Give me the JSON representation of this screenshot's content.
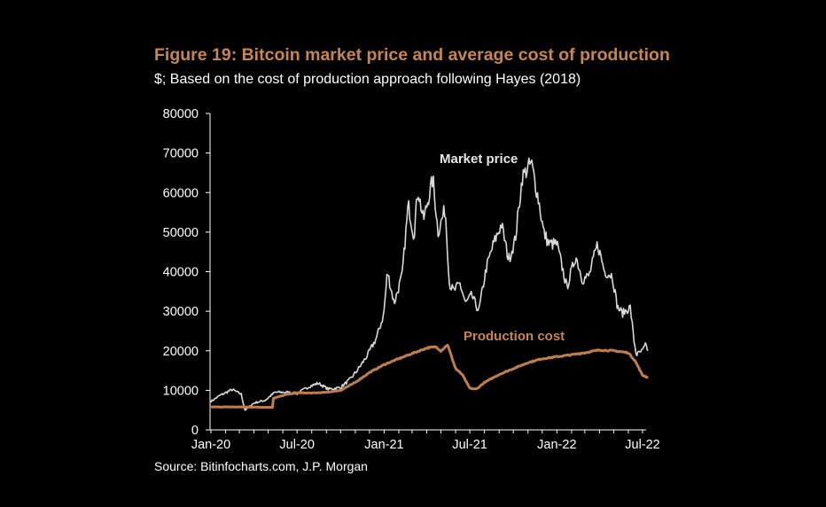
{
  "chart_data": {
    "type": "line",
    "title": "Figure 19: Bitcoin market price and average cost of production",
    "subtitle": "$; Based on the cost of production approach following Hayes (2018)",
    "source": "Source: Bitinfocharts.com, J.P. Morgan",
    "xlabel": "",
    "ylabel": "",
    "x_range": [
      "2020-01-01",
      "2022-07-15"
    ],
    "x_ticks": [
      "Jan-20",
      "Jul-20",
      "Jan-21",
      "Jul-21",
      "Jan-22",
      "Jul-22"
    ],
    "x_tick_dates": [
      "2020-01-01",
      "2020-07-01",
      "2021-01-01",
      "2021-07-01",
      "2022-01-01",
      "2022-07-01"
    ],
    "ylim": [
      0,
      80000
    ],
    "y_ticks": [
      "0",
      "10000",
      "20000",
      "30000",
      "40000",
      "50000",
      "60000",
      "70000",
      "80000"
    ],
    "grid": false,
    "colors": {
      "market": "#d9d9d9",
      "production": "#c07f4a",
      "title": "#c8864f"
    },
    "series": [
      {
        "name": "Market price",
        "x": [
          "2020-01-01",
          "2020-01-20",
          "2020-02-15",
          "2020-03-05",
          "2020-03-13",
          "2020-04-01",
          "2020-04-25",
          "2020-05-15",
          "2020-06-10",
          "2020-07-01",
          "2020-07-27",
          "2020-08-15",
          "2020-09-05",
          "2020-10-01",
          "2020-10-21",
          "2020-11-05",
          "2020-11-25",
          "2020-12-15",
          "2020-12-31",
          "2021-01-08",
          "2021-01-22",
          "2021-02-08",
          "2021-02-21",
          "2021-03-05",
          "2021-03-13",
          "2021-03-25",
          "2021-04-14",
          "2021-04-25",
          "2021-05-10",
          "2021-05-19",
          "2021-05-28",
          "2021-06-10",
          "2021-06-22",
          "2021-07-05",
          "2021-07-20",
          "2021-08-05",
          "2021-08-20",
          "2021-09-06",
          "2021-09-21",
          "2021-10-05",
          "2021-10-20",
          "2021-11-08",
          "2021-11-25",
          "2021-12-04",
          "2021-12-15",
          "2022-01-01",
          "2022-01-22",
          "2022-02-10",
          "2022-02-24",
          "2022-03-10",
          "2022-03-28",
          "2022-04-12",
          "2022-04-28",
          "2022-05-09",
          "2022-05-20",
          "2022-06-05",
          "2022-06-13",
          "2022-06-18",
          "2022-07-01",
          "2022-07-08",
          "2022-07-14"
        ],
        "values": [
          7200,
          8700,
          10200,
          9000,
          5000,
          6800,
          7500,
          9500,
          9500,
          9200,
          11000,
          11800,
          10300,
          10700,
          12800,
          15000,
          18500,
          23000,
          29000,
          40000,
          32000,
          39000,
          57000,
          49000,
          61000,
          53000,
          63500,
          50000,
          56000,
          37000,
          35000,
          37000,
          32000,
          34000,
          30000,
          41000,
          47000,
          52000,
          43000,
          48000,
          64000,
          67500,
          57000,
          50000,
          47000,
          47000,
          36000,
          44000,
          38000,
          39000,
          47000,
          40000,
          39000,
          31000,
          29500,
          31000,
          22500,
          19000,
          20000,
          21500,
          19500
        ]
      },
      {
        "name": "Production cost",
        "x": [
          "2020-01-01",
          "2020-03-01",
          "2020-05-10",
          "2020-05-12",
          "2020-06-10",
          "2020-07-01",
          "2020-08-01",
          "2020-09-01",
          "2020-10-01",
          "2020-11-01",
          "2020-12-01",
          "2021-01-01",
          "2021-02-01",
          "2021-03-01",
          "2021-04-01",
          "2021-04-20",
          "2021-05-01",
          "2021-05-15",
          "2021-06-01",
          "2021-06-15",
          "2021-07-01",
          "2021-07-15",
          "2021-08-01",
          "2021-09-01",
          "2021-10-01",
          "2021-11-01",
          "2021-12-01",
          "2022-01-01",
          "2022-02-01",
          "2022-03-01",
          "2022-04-01",
          "2022-05-01",
          "2022-06-01",
          "2022-06-15",
          "2022-07-01",
          "2022-07-14"
        ],
        "values": [
          5800,
          5800,
          5700,
          8000,
          9000,
          9400,
          9300,
          9500,
          10000,
          12000,
          14500,
          16500,
          18000,
          19300,
          20700,
          21000,
          20000,
          21500,
          15500,
          14000,
          10500,
          10300,
          12000,
          14000,
          15500,
          17000,
          18000,
          18500,
          19000,
          19500,
          20200,
          20000,
          19500,
          17500,
          13800,
          13200
        ]
      }
    ]
  }
}
